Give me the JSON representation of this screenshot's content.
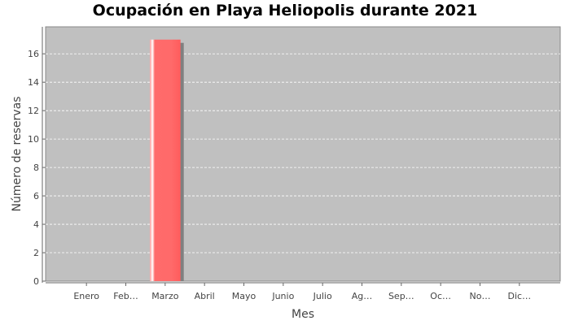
{
  "chart_data": {
    "type": "bar",
    "title": "Ocupación en Playa Heliopolis durante 2021",
    "xlabel": "Mes",
    "ylabel": "Número de reservas",
    "categories": [
      "Enero",
      "Feb…",
      "Marzo",
      "Abril",
      "Mayo",
      "Junio",
      "Julio",
      "Ag…",
      "Sep…",
      "Oc…",
      "No…",
      "Dic…"
    ],
    "values": [
      0,
      0,
      17,
      0,
      0,
      0,
      0,
      0,
      0,
      0,
      0,
      0
    ],
    "ylim": [
      0,
      17.9
    ],
    "yticks": [
      0,
      2,
      4,
      6,
      8,
      10,
      12,
      14,
      16
    ],
    "grid": true,
    "colors": {
      "plot_background": "#c0c0c0",
      "bar": "#ff6666",
      "bar_shadow": "#808080",
      "gridline": "#ffffff"
    }
  }
}
